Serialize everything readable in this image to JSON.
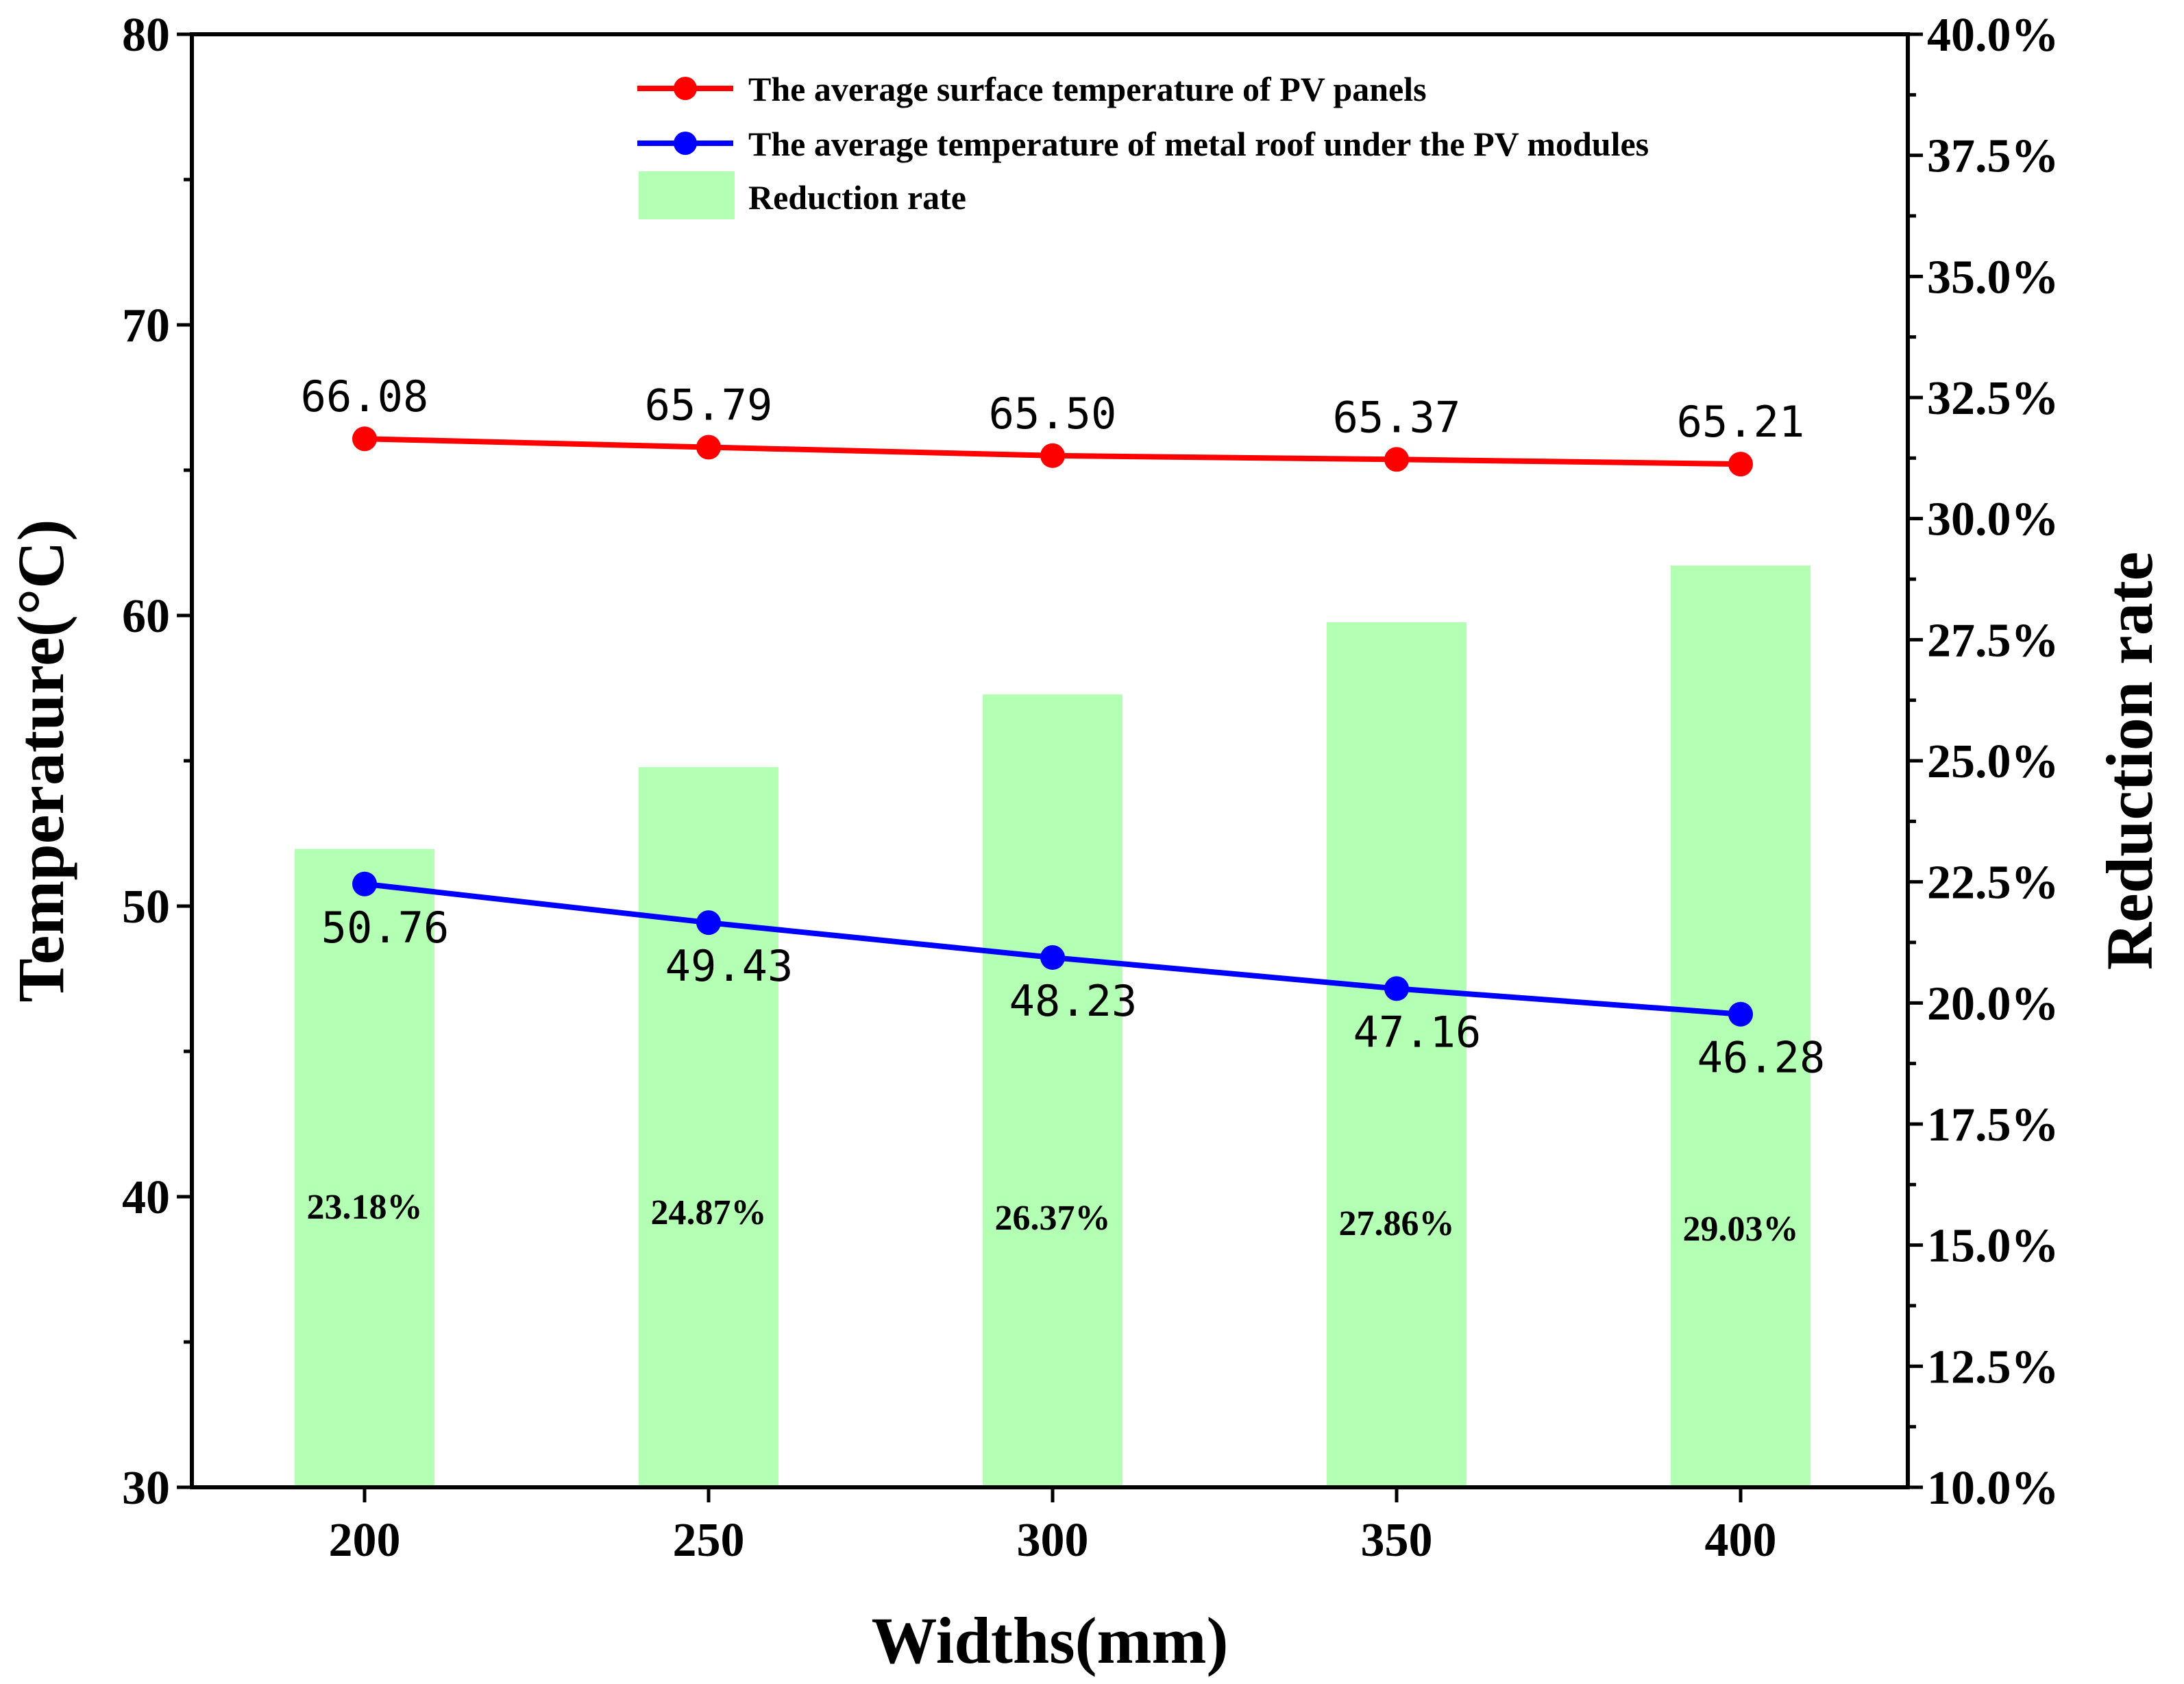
{
  "chart_data": {
    "type": "bar+line",
    "xlabel": "Widths(mm)",
    "ylabel_left": "Temperature(°C)",
    "ylabel_right": "Reduction rate",
    "categories": [
      "200",
      "250",
      "300",
      "350",
      "400"
    ],
    "y_left_range": [
      30,
      80
    ],
    "y_left_ticks": [
      "30",
      "40",
      "50",
      "60",
      "70",
      "80"
    ],
    "y_right_range": [
      10,
      40
    ],
    "y_right_ticks": [
      "10.0%",
      "12.5%",
      "15.0%",
      "17.5%",
      "20.0%",
      "22.5%",
      "25.0%",
      "27.5%",
      "30.0%",
      "32.5%",
      "35.0%",
      "37.5%",
      "40.0%"
    ],
    "grid": false,
    "legend_position": "top-right",
    "series": [
      {
        "name": "The average surface temperature of PV panels",
        "type": "line",
        "axis": "left",
        "color": "#ff0000",
        "values": [
          66.08,
          65.79,
          65.5,
          65.37,
          65.21
        ],
        "labels": [
          "66.08",
          "65.79",
          "65.50",
          "65.37",
          "65.21"
        ]
      },
      {
        "name": "The average temperature of metal roof under the PV modules",
        "type": "line",
        "axis": "left",
        "color": "#0000ff",
        "values": [
          50.76,
          49.43,
          48.23,
          47.16,
          46.28
        ],
        "labels": [
          "50.76",
          "49.43",
          "48.23",
          "47.16",
          "46.28"
        ]
      },
      {
        "name": "Reduction rate",
        "type": "bar",
        "axis": "right",
        "color": "#b3ffb3",
        "values": [
          23.18,
          24.87,
          26.37,
          27.86,
          29.03
        ],
        "labels": [
          "23.18%",
          "24.87%",
          "26.37%",
          "27.86%",
          "29.03%"
        ]
      }
    ]
  }
}
